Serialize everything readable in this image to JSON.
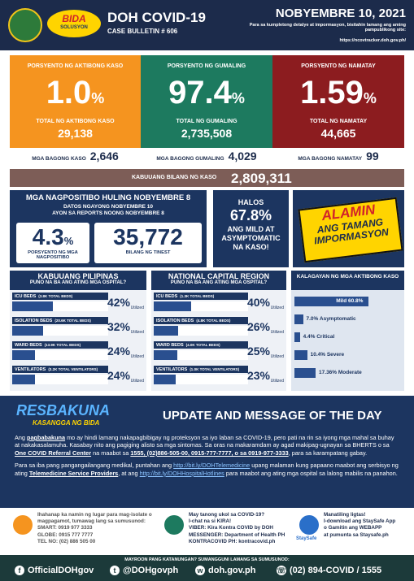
{
  "header": {
    "title": "DOH COVID-19",
    "bulletin": "CASE BULLETIN # 606",
    "date": "NOBYEMBRE 10, 2021",
    "note": "Para sa kumpletong detalye at impormasyon, bisitahin lamang ang aming pampublikong site:",
    "url": "https://ncovtracker.doh.gov.ph/",
    "logo_top": "BIDA",
    "logo_bottom": "SOLUSYON"
  },
  "stats": [
    {
      "label": "PORSYENTO NG AKTIBONG KASO",
      "value": "1.0",
      "unit": "%",
      "sub_label": "TOTAL NG AKTIBONG KASO",
      "count": "29,138",
      "color": "#f5941f"
    },
    {
      "label": "PORSYENTO NG GUMALING",
      "value": "97.4",
      "unit": "%",
      "sub_label": "TOTAL NG GUMALING",
      "count": "2,735,508",
      "color": "#1d7a5f"
    },
    {
      "label": "PORSYENTO NG NAMATAY",
      "value": "1.59",
      "unit": "%",
      "sub_label": "TOTAL NG NAMATAY",
      "count": "44,665",
      "color": "#8c1c1f"
    }
  ],
  "new_counts": [
    {
      "label": "MGA BAGONG KASO",
      "value": "2,646"
    },
    {
      "label": "MGA BAGONG GUMALING",
      "value": "4,029"
    },
    {
      "label": "MGA BAGONG NAMATAY",
      "value": "99"
    }
  ],
  "total": {
    "label": "KABUUANG BILANG NG KASO",
    "value": "2,809,311"
  },
  "positivity": {
    "title": "MGA NAGPOSITIBO HULING NOBYEMBRE 8",
    "line1": "DATOS NGAYONG NOBYEMBRE 10",
    "line2": "AYON SA REPORTS NOONG NOBYEMBRE 8",
    "rate": "4.3",
    "unit": "%",
    "rate_label": "PORSYENTO NG MGA NAGPOSITIBO",
    "tested": "35,772",
    "tested_label": "BILANG NG TINEST"
  },
  "mild": {
    "lines": [
      "HALOS",
      "67.8%",
      "ANG MILD AT",
      "ASYMPTOMATIC",
      "NA KASO!"
    ]
  },
  "alamin": {
    "lines": [
      "ALAMIN",
      "ANG TAMANG",
      "IMPORMASYON"
    ]
  },
  "hospitals": [
    {
      "title": "KABUUANG PILIPINAS",
      "subtitle": "PUNO NA BA ANG ATING MGA OSPITAL?",
      "rows": [
        {
          "label": "ICU BEDS",
          "detail": "(3.8K TOTAL BEDS)",
          "value": 42,
          "value_label": "42%",
          "note": "Utilized"
        },
        {
          "label": "ISOLATION BEDS",
          "detail": "(20.6K TOTAL BEDS)",
          "value": 32,
          "value_label": "32%",
          "note": "Utilized"
        },
        {
          "label": "WARD BEDS",
          "detail": "(13.9K TOTAL BEDS)",
          "value": 24,
          "value_label": "24%",
          "note": "Utilized"
        },
        {
          "label": "VENTILATORS",
          "detail": "(3.2K TOTAL VENTILATORS)",
          "value": 24,
          "value_label": "24%",
          "note": "Utilized"
        }
      ]
    },
    {
      "title": "NATIONAL CAPITAL REGION",
      "subtitle": "PUNO NA BA ANG ATING MGA OSPITAL?",
      "rows": [
        {
          "label": "ICU BEDS",
          "detail": "(1.3K TOTAL BEDS)",
          "value": 40,
          "value_label": "40%",
          "note": "Utilized"
        },
        {
          "label": "ISOLATION BEDS",
          "detail": "(4.8K TOTAL BEDS)",
          "value": 26,
          "value_label": "26%",
          "note": "Utilized"
        },
        {
          "label": "WARD BEDS",
          "detail": "(4.0K TOTAL BEDS)",
          "value": 25,
          "value_label": "25%",
          "note": "Utilized"
        },
        {
          "label": "VENTILATORS",
          "detail": "(1.0K TOTAL VENTILATORS)",
          "value": 23,
          "value_label": "23%",
          "note": "Utilized"
        }
      ]
    }
  ],
  "severity": {
    "title": "KALAGAYAN NG MGA AKTIBONG KASO",
    "bars": [
      {
        "label": "Mild 60.8%",
        "value": 60.8
      },
      {
        "label": "7.0% Asymptomatic",
        "value": 7.0
      },
      {
        "label": "4.4% Critical",
        "value": 4.4
      },
      {
        "label": "10.4% Severe",
        "value": 10.4
      },
      {
        "label": "17.36% Moderate",
        "value": 17.36
      }
    ]
  },
  "message": {
    "logo_top": "RESBAKUNA",
    "logo_bottom": "KASANGGA NG BIDA",
    "title": "UPDATE AND MESSAGE OF THE DAY",
    "paragraphs": [
      [
        {
          "text": "Ang ",
          "kind": "plain"
        },
        {
          "text": "pagbabakuna",
          "kind": "bold"
        },
        {
          "text": " mo ay hindi lamang nakapagbibigay ng proteksyon sa iyo laban sa COVID-19, pero pati na rin sa iyong mga mahal sa buhay at nakakasalamuha. Kasabay nito ang pagiging alisto sa mga sintomas. Sa oras na makaramdam ay agad makipag-ugnayan sa BHERTS o sa ",
          "kind": "plain"
        },
        {
          "text": "One COVID Referral Center",
          "kind": "bold"
        },
        {
          "text": " na maabot sa ",
          "kind": "plain"
        },
        {
          "text": "1555, (02)886-505-00, 0915-777-7777, o sa 0919-977-3333",
          "kind": "bold"
        },
        {
          "text": ", para sa karampatang gabay.",
          "kind": "plain"
        }
      ],
      [
        {
          "text": "Para sa iba pang pangangailangang medikal, puntahan ang ",
          "kind": "plain"
        },
        {
          "text": "http://bit.ly/DOHTelemedicine",
          "kind": "link"
        },
        {
          "text": " upang malaman kung papaano maabot ang serbisyo ng ating ",
          "kind": "plain"
        },
        {
          "text": "Telemedicine Service Providers",
          "kind": "bold"
        },
        {
          "text": ", at ang ",
          "kind": "plain"
        },
        {
          "text": "http://bit.ly/DOHHospitalHotlines",
          "kind": "link"
        },
        {
          "text": " para maabot ang ating mga ospital sa lalong mabilis na panahon.",
          "kind": "plain"
        }
      ]
    ]
  },
  "contacts": [
    {
      "lines": [
        "Ihahanap ka namin ng lugar para mag-isolate o",
        "magpagamot, tumawag lang sa sumusunod:",
        "SMART: 0919 977 3333",
        "GLOBE: 0915 777 7777",
        "TEL NO: (02) 886 505 00"
      ]
    },
    {
      "lines": [
        "May tanong ukol sa COVID-19?",
        "I-chat na si KIRA!",
        "VIBER: Kira Kontra COVID by DOH",
        "MESSENGER: Department of Health PH",
        "KONTRACOVID PH: kontracovid.ph"
      ]
    },
    {
      "badge": "StaySafe",
      "lines": [
        "Manatiling ligtas!",
        "I-download ang StaySafe App",
        "o Gamitin ang WEBAPP",
        "at pumunta sa Staysafe.ph"
      ]
    }
  ],
  "footer": {
    "note": "MAYROON PANG KATANUNGAN? SUMANGGUNI LAMANG SA SUMUSUNOD:",
    "items": [
      "OfficialDOHgov",
      "@DOHgovph",
      "doh.gov.ph",
      "(02) 894-COVID / 1555"
    ],
    "icons": [
      "f",
      "t",
      "w",
      "☏"
    ]
  }
}
